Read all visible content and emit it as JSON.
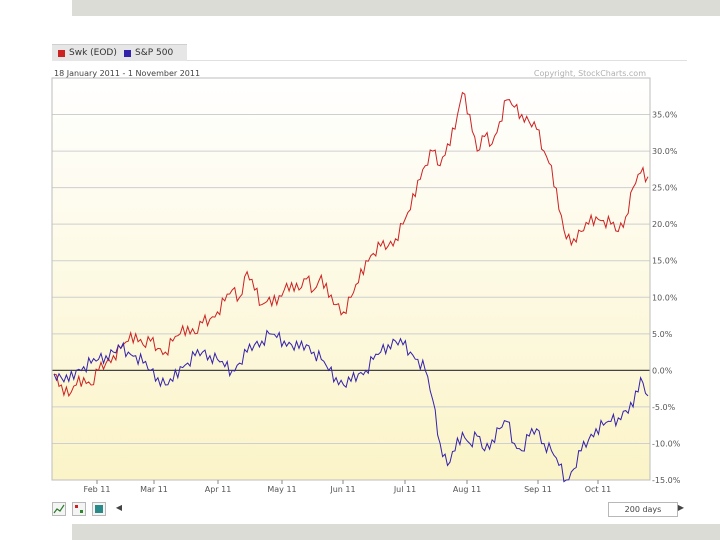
{
  "legend": [
    {
      "name": "Swk (EOD)",
      "color": "#cc2222"
    },
    {
      "name": "S&P 500",
      "color": "#3322aa"
    }
  ],
  "header": {
    "range_text": "18 January 2011 - 1 November 2011",
    "copyright": "Copyright, StockCharts.com"
  },
  "toolbar": {
    "period_label": "200 days",
    "line_icon": "line-chart-icon",
    "dots_icon": "dots-icon",
    "box_icon": "box-icon",
    "prev_icon": "arrow-left-icon",
    "next_icon": "arrow-right-icon"
  },
  "colors": {
    "grid": "#cfcfcf",
    "fill_top": "#ffffff",
    "fill_bottom": "#fbf4c8"
  },
  "chart_data": {
    "type": "line",
    "x_ticks": [
      "Feb 11",
      "Mar 11",
      "Apr 11",
      "May 11",
      "Jun 11",
      "Jul 11",
      "Aug 11",
      "Sep 11",
      "Oct 11"
    ],
    "y_ticks": [
      "35.0%",
      "30.0%",
      "25.0%",
      "20.0%",
      "15.0%",
      "10.0%",
      "5.0%",
      "0.0%",
      "-5.0%",
      "-10.0%",
      "-15.0%"
    ],
    "ylim": [
      -15,
      40
    ],
    "series": [
      {
        "name": "Swk (EOD)",
        "color": "#cc2222",
        "values": [
          -0.5,
          -2,
          -3.5,
          -2,
          -1,
          -2,
          0,
          1,
          2,
          3,
          4,
          5,
          3.5,
          4,
          3,
          2.5,
          4,
          5,
          6,
          5,
          6.5,
          7,
          8,
          9.5,
          11,
          10,
          13.5,
          11,
          9,
          10,
          9,
          11,
          12,
          11,
          12.5,
          11,
          13,
          10,
          9,
          8,
          10,
          12,
          15,
          16,
          17,
          17,
          18,
          20,
          22,
          26,
          28,
          30,
          28,
          31,
          33,
          38,
          35,
          30,
          32,
          31,
          34,
          37,
          36,
          35,
          34,
          33,
          30,
          28,
          22,
          18,
          18,
          19,
          20,
          21,
          20.5,
          20,
          19,
          21,
          25,
          27,
          26.5
        ]
      },
      {
        "name": "S&P 500",
        "color": "#3322aa",
        "values": [
          -0.5,
          -1,
          -1.5,
          0,
          0.5,
          1,
          1.5,
          2,
          2.5,
          3,
          2.5,
          2,
          1,
          0,
          -1,
          -2,
          -1.5,
          0.5,
          1,
          2,
          2.5,
          2,
          1.5,
          0.5,
          0,
          1,
          2.5,
          3.5,
          4,
          5,
          4.5,
          4,
          3.5,
          3,
          3.5,
          2.5,
          1.5,
          0,
          -1,
          -2,
          -1.5,
          -0.5,
          0,
          1.5,
          2.5,
          3.5,
          4,
          3.5,
          2.5,
          1.5,
          0,
          -4,
          -10,
          -13,
          -11,
          -8.5,
          -10,
          -9,
          -11,
          -9.5,
          -8,
          -7,
          -10,
          -11,
          -9,
          -8,
          -10,
          -11,
          -13,
          -15,
          -13.5,
          -11,
          -9.5,
          -8,
          -7.5,
          -7,
          -6.5,
          -5.5,
          -5,
          -1,
          -3.5
        ]
      }
    ]
  }
}
